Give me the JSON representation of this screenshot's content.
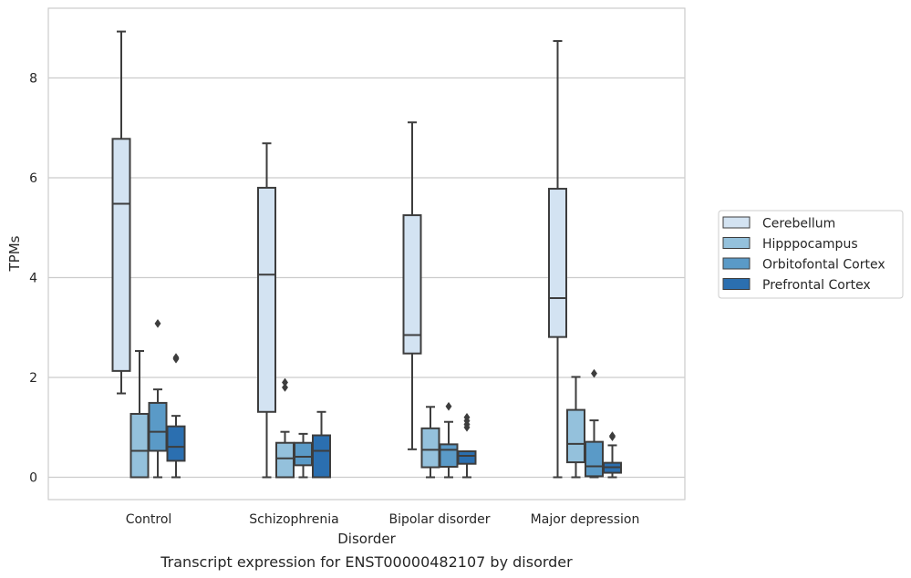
{
  "chart_data": {
    "type": "box",
    "caption": "Transcript expression for ENST00000482107 by disorder",
    "xlabel": "Disorder",
    "ylabel": "TPMs",
    "ylim": [
      -0.42,
      9.4
    ],
    "yticks": [
      0,
      2,
      4,
      6,
      8
    ],
    "grid": "horizontal",
    "legend_position": "right",
    "categories": [
      "Control",
      "Schizophrenia",
      "Bipolar disorder",
      "Major depression"
    ],
    "series": [
      {
        "name": "Cerebellum",
        "color": "#d3e3f2",
        "boxes": [
          {
            "whislo": 1.68,
            "q1": 2.13,
            "med": 5.48,
            "q3": 6.78,
            "whishi": 8.93,
            "fliers": []
          },
          {
            "whislo": 0.0,
            "q1": 1.31,
            "med": 4.06,
            "q3": 5.8,
            "whishi": 6.69,
            "fliers": []
          },
          {
            "whislo": 0.56,
            "q1": 2.48,
            "med": 2.85,
            "q3": 5.25,
            "whishi": 7.11,
            "fliers": []
          },
          {
            "whislo": 0.0,
            "q1": 2.81,
            "med": 3.59,
            "q3": 5.78,
            "whishi": 8.74,
            "fliers": []
          }
        ]
      },
      {
        "name": "Hipppocampus",
        "color": "#94c1dc",
        "boxes": [
          {
            "whislo": 0.0,
            "q1": 0.0,
            "med": 0.53,
            "q3": 1.27,
            "whishi": 2.53,
            "fliers": []
          },
          {
            "whislo": 0.0,
            "q1": 0.0,
            "med": 0.38,
            "q3": 0.69,
            "whishi": 0.91,
            "fliers": [
              1.8,
              1.9
            ]
          },
          {
            "whislo": 0.0,
            "q1": 0.2,
            "med": 0.55,
            "q3": 0.98,
            "whishi": 1.41,
            "fliers": []
          },
          {
            "whislo": 0.0,
            "q1": 0.3,
            "med": 0.67,
            "q3": 1.35,
            "whishi": 2.01,
            "fliers": []
          }
        ]
      },
      {
        "name": "Orbitofontal Cortex",
        "color": "#5a9ac7",
        "boxes": [
          {
            "whislo": 0.0,
            "q1": 0.53,
            "med": 0.91,
            "q3": 1.49,
            "whishi": 1.76,
            "fliers": [
              3.08
            ]
          },
          {
            "whislo": 0.0,
            "q1": 0.24,
            "med": 0.41,
            "q3": 0.69,
            "whishi": 0.87,
            "fliers": []
          },
          {
            "whislo": 0.0,
            "q1": 0.21,
            "med": 0.55,
            "q3": 0.66,
            "whishi": 1.11,
            "fliers": [
              1.42
            ]
          },
          {
            "whislo": 0.0,
            "q1": 0.02,
            "med": 0.22,
            "q3": 0.71,
            "whishi": 1.14,
            "fliers": [
              2.08
            ]
          }
        ]
      },
      {
        "name": "Prefrontal Cortex",
        "color": "#2b6fb0",
        "boxes": [
          {
            "whislo": 0.0,
            "q1": 0.33,
            "med": 0.61,
            "q3": 1.02,
            "whishi": 1.23,
            "fliers": [
              2.37,
              2.4
            ]
          },
          {
            "whislo": 0.0,
            "q1": 0.0,
            "med": 0.53,
            "q3": 0.84,
            "whishi": 1.31,
            "fliers": []
          },
          {
            "whislo": 0.0,
            "q1": 0.27,
            "med": 0.43,
            "q3": 0.52,
            "whishi": 0.52,
            "fliers": [
              1.0,
              1.06,
              1.13,
              1.2
            ]
          },
          {
            "whislo": 0.0,
            "q1": 0.09,
            "med": 0.2,
            "q3": 0.29,
            "whishi": 0.64,
            "fliers": [
              0.81,
              0.83
            ]
          }
        ]
      }
    ]
  }
}
